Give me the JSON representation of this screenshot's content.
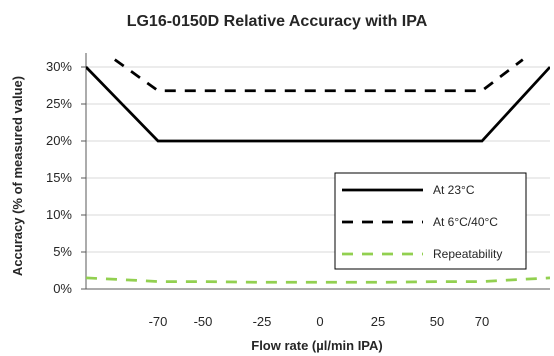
{
  "chart_data": {
    "type": "line",
    "title": "LG16-0150D Relative Accuracy with IPA",
    "xlabel": "Flow rate (µl/min IPA)",
    "ylabel": "Accuracy (% of measured value)",
    "x_ticks": [
      "-70",
      "-50",
      "-25",
      "0",
      "25",
      "50",
      "70"
    ],
    "x_tick_values": [
      -70,
      -50,
      -25,
      0,
      25,
      50,
      70
    ],
    "y_ticks": [
      "0%",
      "5%",
      "10%",
      "15%",
      "20%",
      "25%",
      "30%"
    ],
    "y_tick_values": [
      0,
      5,
      10,
      15,
      20,
      25,
      30
    ],
    "xlim": [
      -150,
      150
    ],
    "ylim": [
      0,
      30
    ],
    "grid": "horizontal",
    "legend_position": "bottom-right inside plot",
    "series": [
      {
        "name": "At 23°C",
        "style": "solid",
        "color": "#000000",
        "x": [
          -150,
          -70,
          70,
          150
        ],
        "y": [
          30,
          20,
          20,
          30
        ]
      },
      {
        "name": "At 6°C/40°C",
        "style": "dashed",
        "color": "#000000",
        "x": [
          -118,
          -70,
          70,
          118
        ],
        "y": [
          31,
          26.8,
          26.8,
          31
        ]
      },
      {
        "name": "Repeatability",
        "style": "dashed",
        "color": "#92d050",
        "x": [
          -150,
          -100,
          -70,
          -50,
          -25,
          0,
          25,
          50,
          70,
          100,
          150
        ],
        "y": [
          1.5,
          1.2,
          1.0,
          1.0,
          0.9,
          0.9,
          0.9,
          1.0,
          1.0,
          1.2,
          1.5
        ]
      }
    ]
  }
}
